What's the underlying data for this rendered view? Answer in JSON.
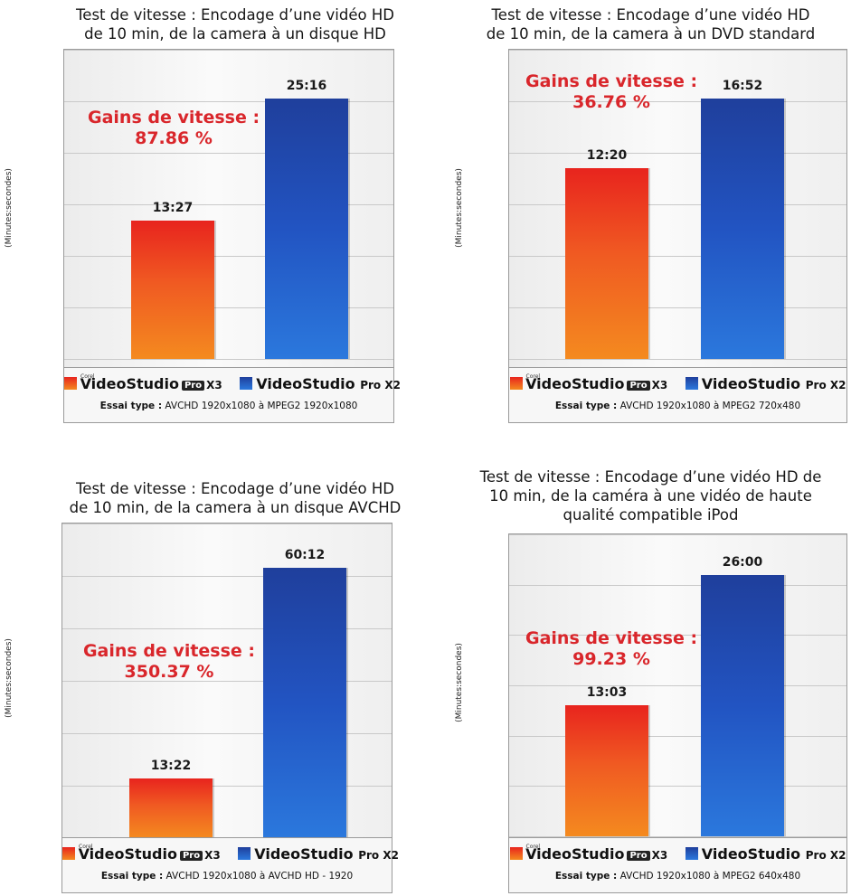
{
  "common": {
    "ylabel": "(Minutes:secondes)",
    "legend": {
      "x3_corel": "Corel",
      "x3_name": "VideoStudio",
      "x3_pro": "Pro",
      "x3_ver": "X3",
      "x2_name": "VideoStudio",
      "x2_ver": "Pro X2"
    },
    "essai_label": "Essai type :",
    "colors": {
      "x3": "#f05a22",
      "x2": "#2254c2",
      "gain": "#d9262b"
    }
  },
  "chart_data": [
    {
      "type": "bar",
      "title_line1": "Test de vitesse : Encodage d’une vidéo HD",
      "title_line2": "de 10 min, de la camera à un disque HD",
      "title_line3": "",
      "ylabel": "(Minutes:secondes)",
      "categories": [
        "VideoStudio Pro X3",
        "VideoStudio Pro X2"
      ],
      "values_seconds": [
        807,
        1516
      ],
      "labels": [
        "13:27",
        "25:16"
      ],
      "gain_line1": "Gains de vitesse :",
      "gain_line2": "87.86 %",
      "essai_value": "AVCHD 1920x1080 à MPEG2 1920x1080",
      "ylim_seconds": [
        0,
        1800
      ],
      "grid": true
    },
    {
      "type": "bar",
      "title_line1": "Test de vitesse : Encodage d’une vidéo HD",
      "title_line2": "de 10 min, de la camera à un DVD standard",
      "title_line3": "",
      "ylabel": "(Minutes:secondes)",
      "categories": [
        "VideoStudio Pro X3",
        "VideoStudio Pro X2"
      ],
      "values_seconds": [
        740,
        1012
      ],
      "labels": [
        "12:20",
        "16:52"
      ],
      "gain_line1": "Gains de vitesse :",
      "gain_line2": "36.76 %",
      "essai_value": "AVCHD 1920x1080 à MPEG2 720x480",
      "ylim_seconds": [
        0,
        1200
      ],
      "grid": true
    },
    {
      "type": "bar",
      "title_line1": "Test de vitesse : Encodage d’une vidéo HD",
      "title_line2": "de 10 min, de la camera à un disque AVCHD",
      "title_line3": "",
      "ylabel": "(Minutes:secondes)",
      "categories": [
        "VideoStudio Pro X3",
        "VideoStudio Pro X2"
      ],
      "values_seconds": [
        802,
        3612
      ],
      "labels": [
        "13:22",
        "60:12"
      ],
      "gain_line1": "Gains de vitesse :",
      "gain_line2": "350.37 %",
      "essai_value": "AVCHD 1920x1080 à AVCHD HD - 1920",
      "ylim_seconds": [
        0,
        4200
      ],
      "grid": true
    },
    {
      "type": "bar",
      "title_line1": "Test de vitesse : Encodage d’une vidéo HD de",
      "title_line2": "10 min, de la caméra à une vidéo de haute",
      "title_line3": "qualité compatible iPod",
      "ylabel": "(Minutes:secondes)",
      "categories": [
        "VideoStudio Pro X3",
        "VideoStudio Pro X2"
      ],
      "values_seconds": [
        783,
        1560
      ],
      "labels": [
        "13:03",
        "26:00"
      ],
      "gain_line1": "Gains de vitesse :",
      "gain_line2": "99.23 %",
      "essai_value": "AVCHD 1920x1080 à MPEG2 640x480",
      "ylim_seconds": [
        0,
        1800
      ],
      "grid": true
    }
  ]
}
